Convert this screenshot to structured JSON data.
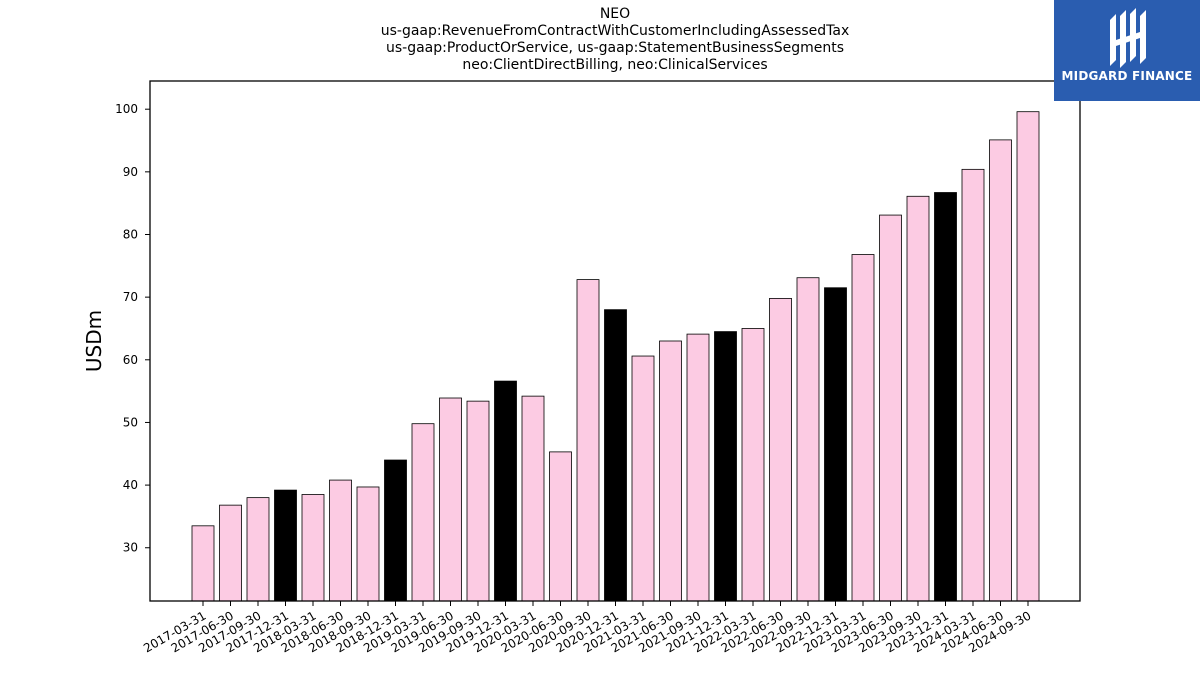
{
  "title_lines": [
    "NEO",
    "us-gaap:RevenueFromContractWithCustomerIncludingAssessedTax",
    "us-gaap:ProductOrService, us-gaap:StatementBusinessSegments",
    "neo:ClientDirectBilling, neo:ClinicalServices"
  ],
  "logo": {
    "text": "MIDGARD FINANCE",
    "background": "#2a5db0",
    "icon": "midgard-logo-icon"
  },
  "chart_data": {
    "type": "bar",
    "title": "NEO",
    "xlabel": "",
    "ylabel": "USDm",
    "ylim": [
      21.5,
      104.5
    ],
    "yticks": [
      30,
      40,
      50,
      60,
      70,
      80,
      90,
      100
    ],
    "grid": false,
    "colors": {
      "quarter": "#fccbe3",
      "year_end": "#000000",
      "edge": "#000000"
    },
    "categories": [
      "2017-03-31",
      "2017-06-30",
      "2017-09-30",
      "2017-12-31",
      "2018-03-31",
      "2018-06-30",
      "2018-09-30",
      "2018-12-31",
      "2019-03-31",
      "2019-06-30",
      "2019-09-30",
      "2019-12-31",
      "2020-03-31",
      "2020-06-30",
      "2020-09-30",
      "2020-12-31",
      "2021-03-31",
      "2021-06-30",
      "2021-09-30",
      "2021-12-31",
      "2022-03-31",
      "2022-06-30",
      "2022-09-30",
      "2022-12-31",
      "2023-03-31",
      "2023-06-30",
      "2023-09-30",
      "2023-12-31",
      "2024-03-31",
      "2024-06-30",
      "2024-09-30"
    ],
    "values": [
      33.5,
      36.8,
      38.0,
      39.2,
      38.5,
      40.8,
      39.7,
      44.0,
      49.8,
      53.9,
      53.4,
      56.6,
      54.2,
      45.3,
      72.8,
      68.0,
      60.6,
      63.0,
      64.1,
      64.5,
      65.0,
      69.8,
      73.1,
      71.5,
      76.8,
      83.1,
      86.1,
      86.7,
      90.4,
      95.1,
      99.6
    ],
    "highlight": [
      false,
      false,
      false,
      true,
      false,
      false,
      false,
      true,
      false,
      false,
      false,
      true,
      false,
      false,
      false,
      true,
      false,
      false,
      false,
      true,
      false,
      false,
      false,
      true,
      false,
      false,
      false,
      true,
      false,
      false,
      false
    ]
  }
}
